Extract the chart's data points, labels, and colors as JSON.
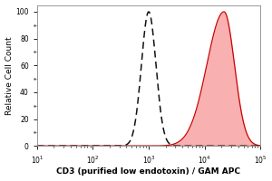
{
  "xlabel": "CD3 (purified low endotoxin) / GAM APC",
  "ylabel": "Relative Cell Count",
  "xlabel_fontsize": 6.5,
  "ylabel_fontsize": 6.5,
  "tick_fontsize": 5.5,
  "xlim_log": [
    10,
    100000
  ],
  "ylim": [
    0,
    105
  ],
  "yticks": [
    0,
    20,
    40,
    60,
    80,
    100
  ],
  "ytick_labels": [
    "0",
    "20",
    "40",
    "60",
    "80",
    "100"
  ],
  "background_color": "#ffffff",
  "plot_bg_color": "#ffffff",
  "dashed_peak_log10": 3.0,
  "dashed_std_log10": 0.13,
  "dashed_amplitude": 100,
  "red_peak_log10": 4.35,
  "red_std_log10": 0.22,
  "red_amplitude": 100,
  "dashed_color": "#111111",
  "red_fill_color": "#f8b0b0",
  "red_line_color": "#cc0000",
  "baseline_color": "#990000",
  "spine_color": "#888888"
}
